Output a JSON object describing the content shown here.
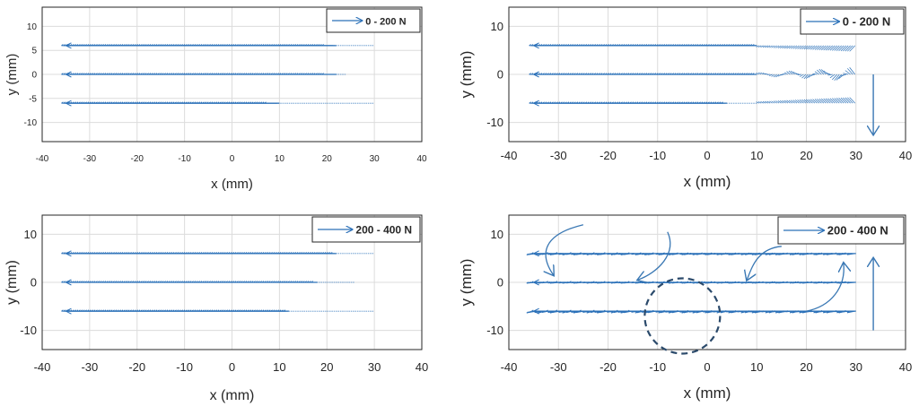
{
  "colors": {
    "quiver": "#2a70b8",
    "annotation": "#3a78b4",
    "grid": "#dcdcdc",
    "axis": "#262626",
    "circle": "#2b4a6b"
  },
  "chart_data": [
    {
      "id": "top-left",
      "type": "quiver",
      "legend": "0 - 200 N",
      "xlabel": "x (mm)",
      "ylabel": "y (mm)",
      "xlim": [
        -40,
        40
      ],
      "ylim": [
        -14,
        14
      ],
      "xticks": [
        -40,
        -30,
        -20,
        -10,
        0,
        10,
        20,
        30,
        40
      ],
      "yticks": [
        10,
        5,
        0,
        -5,
        -10
      ],
      "rows": [
        {
          "y": 6,
          "x_start": -35,
          "x_end": 30,
          "dense_end": 22
        },
        {
          "y": 0,
          "x_start": -35,
          "x_end": 24,
          "dense_end": 22
        },
        {
          "y": -6,
          "x_start": -35,
          "x_end": 30,
          "dense_end": 10
        }
      ],
      "annotated": false
    },
    {
      "id": "top-right",
      "type": "quiver",
      "legend": "0 - 200 N",
      "xlabel": "x (mm)",
      "ylabel": "y (mm)",
      "xlim": [
        -40,
        40
      ],
      "ylim": [
        -14,
        14
      ],
      "xticks": [
        -40,
        -30,
        -20,
        -10,
        0,
        10,
        20,
        30,
        40
      ],
      "yticks": [
        10,
        0,
        -10
      ],
      "rows": [
        {
          "y": 6,
          "x_start": -35,
          "x_end": 30,
          "dense_end": 10
        },
        {
          "y": 0,
          "x_start": -35,
          "x_end": 30,
          "dense_end": 10
        },
        {
          "y": -6,
          "x_start": -35,
          "x_end": 30,
          "dense_end": 4
        }
      ],
      "side_arrow": "down",
      "annotated": false
    },
    {
      "id": "bottom-left",
      "type": "quiver",
      "legend": "200 - 400 N",
      "xlabel": "x (mm)",
      "ylabel": "y (mm)",
      "xlim": [
        -40,
        40
      ],
      "ylim": [
        -14,
        14
      ],
      "xticks": [
        -40,
        -30,
        -20,
        -10,
        0,
        10,
        20,
        30,
        40
      ],
      "yticks": [
        10,
        0,
        -10
      ],
      "rows": [
        {
          "y": 6,
          "x_start": -35,
          "x_end": 30,
          "dense_end": 22
        },
        {
          "y": 0,
          "x_start": -35,
          "x_end": 26,
          "dense_end": 18
        },
        {
          "y": -6,
          "x_start": -35,
          "x_end": 30,
          "dense_end": 12
        }
      ],
      "annotated": false
    },
    {
      "id": "bottom-right",
      "type": "quiver",
      "legend": "200 - 400 N",
      "xlabel": "x (mm)",
      "ylabel": "y (mm)",
      "xlim": [
        -40,
        40
      ],
      "ylim": [
        -14,
        14
      ],
      "xticks": [
        -40,
        -30,
        -20,
        -10,
        0,
        10,
        20,
        30,
        40
      ],
      "yticks": [
        10,
        0,
        -10
      ],
      "rows": [
        {
          "y": 6,
          "x_start": -35,
          "x_end": 30,
          "dense_end": 30
        },
        {
          "y": 0,
          "x_start": -35,
          "x_end": 30,
          "dense_end": 30
        },
        {
          "y": -6,
          "x_start": -35,
          "x_end": 30,
          "dense_end": 30
        }
      ],
      "side_arrow": "up",
      "annotated": true
    }
  ]
}
